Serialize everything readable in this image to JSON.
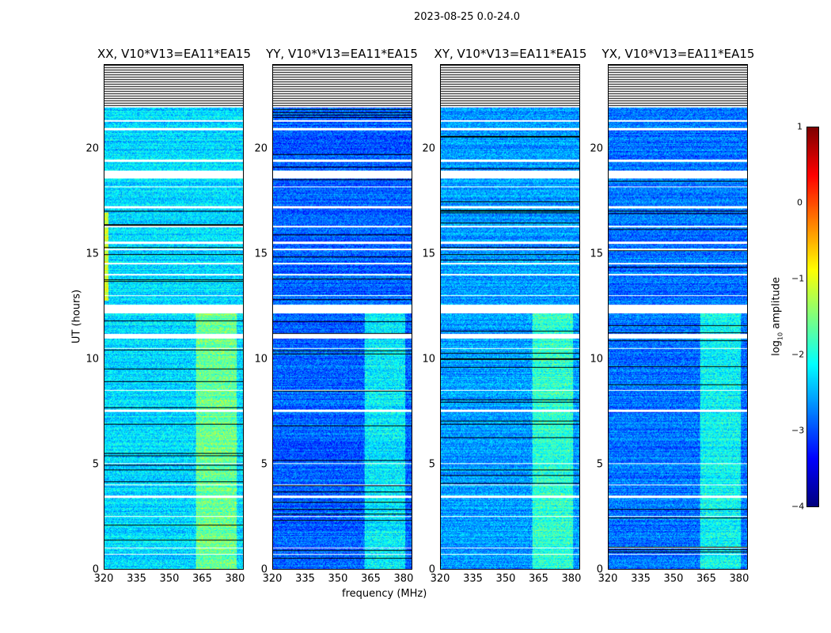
{
  "chart_data": {
    "type": "heatmap",
    "title": "2023-08-25 0.0-24.0",
    "xlabel": "frequency (MHz)",
    "ylabel": "UT (hours)",
    "xlim": [
      320,
      384
    ],
    "ylim": [
      0,
      24
    ],
    "xticks": [
      "320",
      "335",
      "350",
      "365",
      "380"
    ],
    "xtick_values": [
      320,
      335,
      350,
      365,
      380
    ],
    "yticks": [
      "0",
      "5",
      "10",
      "15",
      "20"
    ],
    "ytick_values": [
      0,
      5,
      10,
      15,
      20
    ],
    "colormap": "jet",
    "colorbar": {
      "label": "log10 amplitude",
      "range": [
        -4,
        1
      ],
      "ticks": [
        "1",
        "0",
        "−1",
        "−2",
        "−3",
        "−4"
      ],
      "tick_values": [
        1,
        0,
        -1,
        -2,
        -3,
        -4
      ]
    },
    "panels": [
      {
        "title": "XX, V10*V13=EA11*EA15",
        "base_level": -2.3
      },
      {
        "title": "YY, V10*V13=EA11*EA15",
        "base_level": -2.9
      },
      {
        "title": "XY, V10*V13=EA11*EA15",
        "base_level": -2.6
      },
      {
        "title": "YX, V10*V13=EA11*EA15",
        "base_level": -2.8
      }
    ],
    "rfi_band_mhz": [
      362,
      381
    ],
    "flagged_hours": [
      [
        22.0,
        24.0
      ],
      [
        21.3,
        21.4
      ],
      [
        20.9,
        21.0
      ],
      [
        19.4,
        19.5
      ],
      [
        18.6,
        19.0
      ],
      [
        18.2,
        18.25
      ],
      [
        17.2,
        17.3
      ],
      [
        16.3,
        16.35
      ],
      [
        15.5,
        15.6
      ],
      [
        15.2,
        15.25
      ],
      [
        14.5,
        14.6
      ],
      [
        14.0,
        14.05
      ],
      [
        13.0,
        13.05
      ],
      [
        12.2,
        12.6
      ],
      [
        11.0,
        11.2
      ],
      [
        10.5,
        10.55
      ],
      [
        8.5,
        8.55
      ],
      [
        7.5,
        7.6
      ],
      [
        5.0,
        5.05
      ],
      [
        4.0,
        4.05
      ],
      [
        3.4,
        3.5
      ],
      [
        2.5,
        2.55
      ],
      [
        1.0,
        1.05
      ],
      [
        0.7,
        0.75
      ]
    ]
  }
}
